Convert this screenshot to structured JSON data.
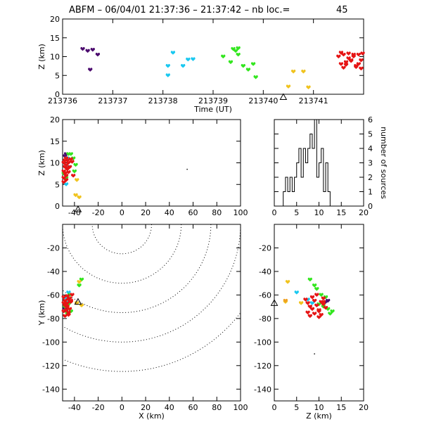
{
  "header": {
    "title": "ABFM – 06/04/01 21:37:36 – 21:37:42 – nb loc.=",
    "count": "45"
  },
  "colors": {
    "purple": "#4b0a6e",
    "cyan": "#19c8f0",
    "green": "#32e61e",
    "yellow": "#f0c31e",
    "red": "#e61414",
    "orange": "#f0a020",
    "blue": "#1e8cf0"
  },
  "chart_data": [
    {
      "id": "time-height",
      "type": "scatter",
      "xlabel": "Time (UT)",
      "ylabel": "Z (km)",
      "xlim": [
        213736,
        213742
      ],
      "ylim": [
        0,
        20
      ],
      "xticks": [
        "213736",
        "213737",
        "213738",
        "213739",
        "213740",
        "213741"
      ],
      "yticks": [
        "0",
        "5",
        "10",
        "15",
        "20"
      ],
      "station_marker": {
        "x": 213740.4,
        "y": -0.8
      },
      "series": [
        {
          "color": "purple",
          "x": [
            213736.4,
            213736.5,
            213736.6,
            213736.7,
            213736.55
          ],
          "y": [
            12,
            11.5,
            11.8,
            10.5,
            6.5
          ]
        },
        {
          "color": "cyan",
          "x": [
            213738.1,
            213738.1,
            213738.2,
            213738.4,
            213738.5,
            213738.6
          ],
          "y": [
            5,
            7.5,
            11,
            7.5,
            9.2,
            9.3
          ]
        },
        {
          "color": "green",
          "x": [
            213739.2,
            213739.4,
            213739.45,
            213739.5,
            213739.6,
            213739.7,
            213739.8,
            213739.85,
            213739.35,
            213739.5
          ],
          "y": [
            10,
            12,
            11.5,
            12.2,
            7.5,
            6.5,
            8,
            4.5,
            8.5,
            10.5
          ]
        },
        {
          "color": "yellow",
          "x": [
            213740.5,
            213740.6,
            213740.8,
            213740.9
          ],
          "y": [
            2,
            6,
            6,
            1.8
          ]
        },
        {
          "color": "red",
          "x": [
            213741.5,
            213741.55,
            213741.6,
            213741.65,
            213741.7,
            213741.75,
            213741.8,
            213741.85,
            213741.9,
            213741.95,
            213741.6,
            213741.7,
            213741.8,
            213741.9,
            213741.55,
            213741.65,
            213741.75,
            213741.85,
            213741.95,
            213741.98
          ],
          "y": [
            10,
            11,
            10.5,
            8.5,
            10.8,
            9,
            10.5,
            7.5,
            8,
            9,
            7,
            9.5,
            10,
            10.5,
            8,
            7.8,
            8.8,
            7.2,
            6.8,
            10.8
          ]
        }
      ]
    },
    {
      "id": "x-height",
      "type": "scatter",
      "xlabel": "",
      "ylabel": "Z (km)",
      "xlim": [
        -50,
        100
      ],
      "ylim": [
        0,
        20
      ],
      "xticks": [
        "-40",
        "-20",
        "0",
        "20",
        "40",
        "60",
        "80",
        "100"
      ],
      "yticks": [
        "0",
        "5",
        "10",
        "15",
        "20"
      ],
      "station_marker": {
        "x": -37,
        "y": -0.8
      },
      "series": [
        {
          "color": "purple",
          "x": [
            -47,
            -48
          ],
          "y": [
            12,
            11.5
          ]
        },
        {
          "color": "cyan",
          "x": [
            -46,
            -45,
            -47
          ],
          "y": [
            11,
            9,
            5
          ]
        },
        {
          "color": "green",
          "x": [
            -45,
            -43,
            -41,
            -39,
            -40,
            -49,
            -47
          ],
          "y": [
            12,
            12,
            11,
            9.5,
            8,
            7.5,
            6.5
          ]
        },
        {
          "color": "yellow",
          "x": [
            -38,
            -36,
            -39
          ],
          "y": [
            6,
            2,
            2.5
          ]
        },
        {
          "color": "red",
          "x": [
            -49,
            -48,
            -47,
            -46,
            -45,
            -44,
            -43,
            -42,
            -49,
            -48,
            -47,
            -46,
            -45,
            -49,
            -48,
            -47,
            -46,
            -41,
            -49,
            -47
          ],
          "y": [
            10,
            10.5,
            9.5,
            8.5,
            10,
            9,
            10.8,
            10.2,
            8,
            7.5,
            7,
            8.8,
            7.8,
            6.5,
            9,
            6,
            10.5,
            7,
            5.5,
            11
          ]
        },
        {
          "color": "black",
          "x": [
            55
          ],
          "y": [
            8.5
          ]
        }
      ]
    },
    {
      "id": "height-histogram",
      "type": "histogram",
      "xlabel": "",
      "ylabel": "number of sources",
      "xlim": [
        0,
        20
      ],
      "ylim": [
        0,
        6
      ],
      "xticks": [
        "0",
        "5",
        "10",
        "15",
        "20"
      ],
      "yticks": [
        "0",
        "1",
        "2",
        "3",
        "4",
        "5",
        "6"
      ],
      "bin_width": 0.5,
      "bin_edges_start": 0,
      "counts": [
        0,
        0,
        0,
        0,
        1,
        2,
        1,
        2,
        1,
        2,
        3,
        4,
        2,
        4,
        3,
        4,
        5,
        4,
        6,
        2,
        3,
        4,
        1,
        3,
        1,
        0,
        0,
        0,
        0,
        0,
        0,
        0,
        0,
        0,
        0,
        0,
        0,
        0,
        0,
        0
      ]
    },
    {
      "id": "plan-view",
      "type": "scatter",
      "xlabel": "X (km)",
      "ylabel": "Y (km)",
      "xlim": [
        -50,
        100
      ],
      "ylim": [
        -150,
        0
      ],
      "xticks": [
        "-40",
        "-20",
        "0",
        "20",
        "40",
        "60",
        "80",
        "100"
      ],
      "yticks": [
        "-140",
        "-120",
        "-100",
        "-80",
        "-60",
        "-40",
        "-20"
      ],
      "range_rings_center": {
        "x": 0,
        "y": 0
      },
      "range_rings_km": [
        25,
        50,
        75,
        100,
        125
      ],
      "station_marker": {
        "x": -37,
        "y": -66
      },
      "series": [
        {
          "color": "purple",
          "x": [
            -48,
            -47
          ],
          "y": [
            -72,
            -74
          ]
        },
        {
          "color": "cyan",
          "x": [
            -45,
            -47,
            -46
          ],
          "y": [
            -58,
            -63,
            -66
          ]
        },
        {
          "color": "green",
          "x": [
            -34,
            -36,
            -44,
            -45,
            -46,
            -48,
            -43
          ],
          "y": [
            -47,
            -52,
            -60,
            -68,
            -76,
            -70,
            -74
          ]
        },
        {
          "color": "yellow",
          "x": [
            -36,
            -38,
            -34
          ],
          "y": [
            -49,
            -67,
            -69
          ]
        },
        {
          "color": "red",
          "x": [
            -49,
            -48,
            -47,
            -46,
            -45,
            -44,
            -43,
            -42,
            -49,
            -48,
            -47,
            -46,
            -45,
            -44,
            -48,
            -47,
            -46,
            -45,
            -49,
            -43
          ],
          "y": [
            -62,
            -65,
            -68,
            -70,
            -64,
            -72,
            -66,
            -60,
            -74,
            -78,
            -70,
            -67,
            -75,
            -63,
            -69,
            -73,
            -61,
            -77,
            -67,
            -65
          ]
        }
      ]
    },
    {
      "id": "z-y-view",
      "type": "scatter",
      "xlabel": "Z (km)",
      "ylabel": "",
      "xlim": [
        0,
        20
      ],
      "ylim": [
        -150,
        0
      ],
      "xticks": [
        "0",
        "5",
        "10",
        "15",
        "20"
      ],
      "yticks": [
        "-140",
        "-120",
        "-100",
        "-80",
        "-60",
        "-40",
        "-20"
      ],
      "station_marker": {
        "x": 0,
        "y": -67
      },
      "series": [
        {
          "color": "purple",
          "x": [
            12,
            11.5
          ],
          "y": [
            -65,
            -66
          ]
        },
        {
          "color": "cyan",
          "x": [
            5,
            7.5,
            8.5
          ],
          "y": [
            -58,
            -64,
            -67
          ]
        },
        {
          "color": "green",
          "x": [
            8,
            9,
            10,
            11,
            12,
            12.5,
            11.5,
            10.5,
            9.5,
            13
          ],
          "y": [
            -47,
            -52,
            -68,
            -70,
            -72,
            -76,
            -62,
            -60,
            -55,
            -74
          ]
        },
        {
          "color": "yellow",
          "x": [
            3,
            2.5,
            6
          ],
          "y": [
            -49,
            -66,
            -67
          ]
        },
        {
          "color": "orange",
          "x": [
            2.5
          ],
          "y": [
            -65
          ]
        },
        {
          "color": "red",
          "x": [
            7,
            7.5,
            8,
            8.5,
            9,
            9.5,
            10,
            10.5,
            11,
            11.5,
            7.5,
            8,
            9,
            10,
            10.5,
            11,
            8.5,
            9.5,
            10,
            11
          ],
          "y": [
            -64,
            -67,
            -70,
            -72,
            -65,
            -69,
            -74,
            -66,
            -63,
            -71,
            -75,
            -78,
            -76,
            -73,
            -77,
            -68,
            -62,
            -60,
            -79,
            -66
          ]
        },
        {
          "color": "black",
          "x": [
            9
          ],
          "y": [
            -110
          ]
        }
      ]
    }
  ]
}
